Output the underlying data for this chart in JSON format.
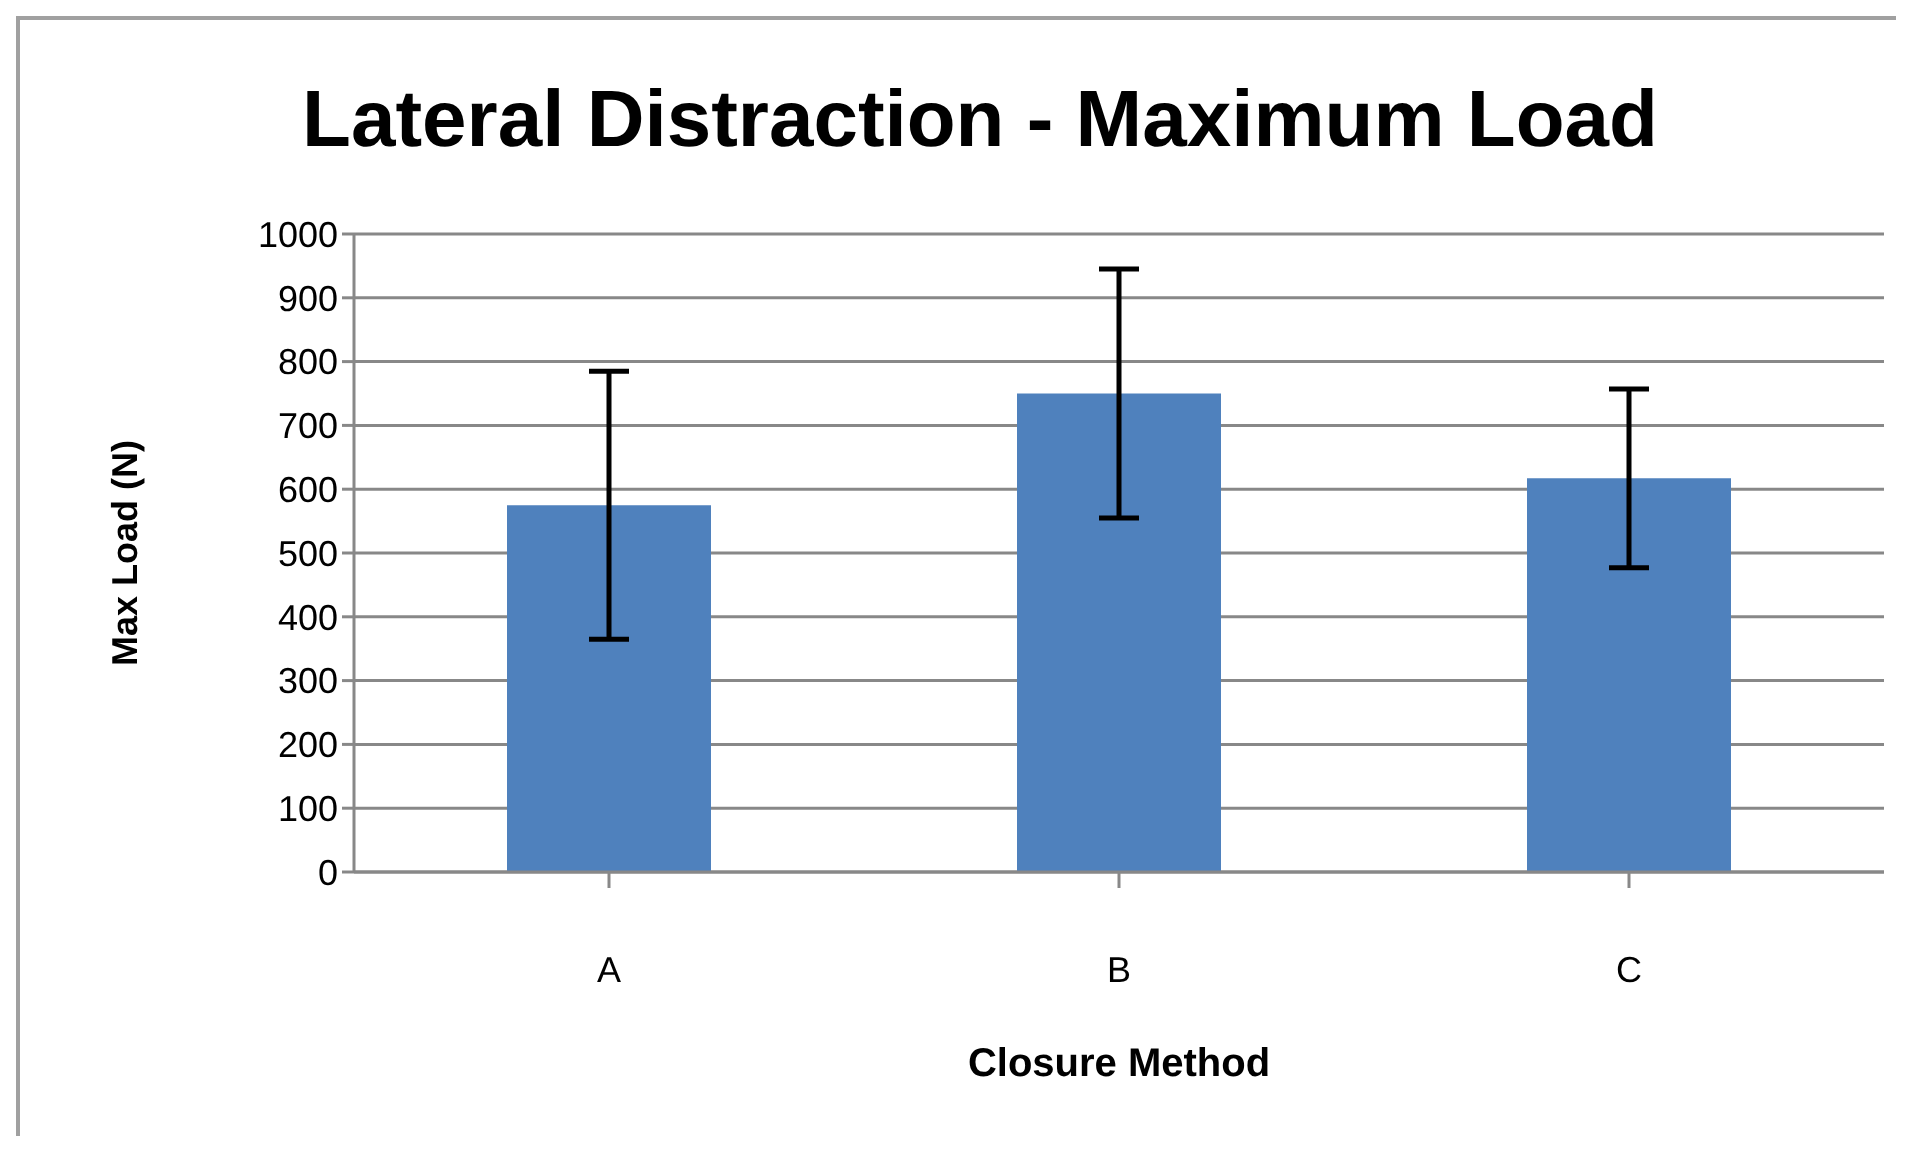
{
  "chart_data": {
    "type": "bar",
    "title": "Lateral Distraction - Maximum Load",
    "xlabel": "Closure Method",
    "ylabel": "Max Load (N)",
    "categories": [
      "A",
      "B",
      "C"
    ],
    "series": [
      {
        "color": "#4f81bd",
        "values": [
          575,
          750,
          617
        ],
        "errors": [
          210,
          195,
          140
        ]
      }
    ],
    "ylim": [
      0,
      1000
    ],
    "yticks": [
      0,
      100,
      200,
      300,
      400,
      500,
      600,
      700,
      800,
      900,
      1000
    ],
    "grid": "y",
    "legend": false
  }
}
